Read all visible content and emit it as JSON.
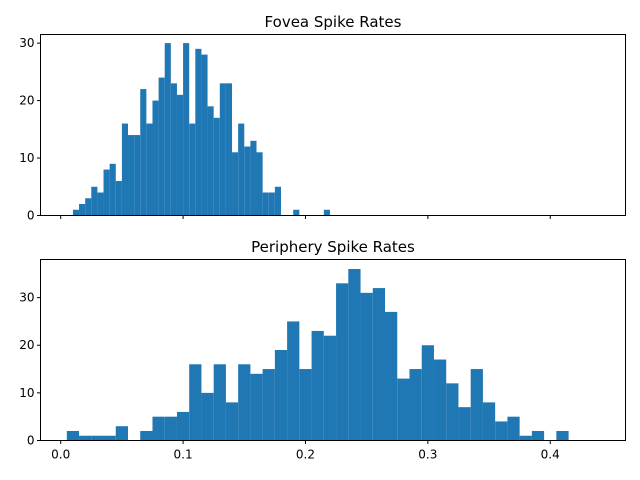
{
  "bar_color": "#1f77b4",
  "chart_data": [
    {
      "type": "bar",
      "title": "Fovea Spike Rates",
      "xlabel": "",
      "ylabel": "",
      "xlim": [
        -0.0165,
        0.4615
      ],
      "ylim": [
        0,
        31.5
      ],
      "xticks": [
        0.0,
        0.1,
        0.2,
        0.3,
        0.4
      ],
      "xtick_labels_visible": false,
      "yticks": [
        0,
        10,
        20,
        30
      ],
      "bin_width": 0.005,
      "bins": [
        [
          0.01,
          1
        ],
        [
          0.015,
          2
        ],
        [
          0.02,
          3
        ],
        [
          0.025,
          5
        ],
        [
          0.03,
          4
        ],
        [
          0.035,
          8
        ],
        [
          0.04,
          9
        ],
        [
          0.045,
          6
        ],
        [
          0.05,
          16
        ],
        [
          0.055,
          14
        ],
        [
          0.06,
          14
        ],
        [
          0.065,
          22
        ],
        [
          0.07,
          16
        ],
        [
          0.075,
          20
        ],
        [
          0.08,
          24
        ],
        [
          0.085,
          30
        ],
        [
          0.09,
          23
        ],
        [
          0.095,
          21
        ],
        [
          0.1,
          30
        ],
        [
          0.105,
          16
        ],
        [
          0.11,
          29
        ],
        [
          0.115,
          28
        ],
        [
          0.12,
          19
        ],
        [
          0.125,
          17
        ],
        [
          0.13,
          23
        ],
        [
          0.135,
          23
        ],
        [
          0.14,
          11
        ],
        [
          0.145,
          16
        ],
        [
          0.15,
          12
        ],
        [
          0.155,
          13
        ],
        [
          0.16,
          11
        ],
        [
          0.165,
          4
        ],
        [
          0.17,
          4
        ],
        [
          0.175,
          5
        ],
        [
          0.19,
          1
        ],
        [
          0.215,
          1
        ]
      ]
    },
    {
      "type": "bar",
      "title": "Periphery Spike Rates",
      "xlabel": "",
      "ylabel": "",
      "xlim": [
        -0.0165,
        0.4615
      ],
      "ylim": [
        0,
        38
      ],
      "xticks": [
        0.0,
        0.1,
        0.2,
        0.3,
        0.4
      ],
      "xtick_labels": [
        "0.0",
        "0.1",
        "0.2",
        "0.3",
        "0.4"
      ],
      "xtick_labels_visible": true,
      "yticks": [
        0,
        10,
        20,
        30
      ],
      "bin_width": 0.01,
      "bins": [
        [
          0.005,
          2
        ],
        [
          0.015,
          1
        ],
        [
          0.025,
          1
        ],
        [
          0.035,
          1
        ],
        [
          0.045,
          3
        ],
        [
          0.055,
          0
        ],
        [
          0.065,
          2
        ],
        [
          0.075,
          5
        ],
        [
          0.085,
          5
        ],
        [
          0.095,
          6
        ],
        [
          0.105,
          16
        ],
        [
          0.115,
          10
        ],
        [
          0.125,
          16
        ],
        [
          0.135,
          8
        ],
        [
          0.145,
          16
        ],
        [
          0.155,
          14
        ],
        [
          0.165,
          15
        ],
        [
          0.175,
          19
        ],
        [
          0.185,
          25
        ],
        [
          0.195,
          15
        ],
        [
          0.205,
          23
        ],
        [
          0.215,
          22
        ],
        [
          0.225,
          33
        ],
        [
          0.235,
          36
        ],
        [
          0.245,
          31
        ],
        [
          0.255,
          32
        ],
        [
          0.265,
          27
        ],
        [
          0.275,
          13
        ],
        [
          0.285,
          15
        ],
        [
          0.295,
          20
        ],
        [
          0.305,
          17
        ],
        [
          0.315,
          12
        ],
        [
          0.325,
          7
        ],
        [
          0.335,
          15
        ],
        [
          0.345,
          8
        ],
        [
          0.355,
          4
        ],
        [
          0.365,
          5
        ],
        [
          0.375,
          1
        ],
        [
          0.385,
          2
        ],
        [
          0.395,
          0
        ],
        [
          0.405,
          2
        ]
      ]
    }
  ]
}
